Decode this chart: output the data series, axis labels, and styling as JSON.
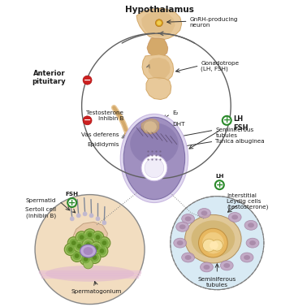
{
  "bg_color": "#ffffff",
  "labels": {
    "hypothalamus": "Hypothalamus",
    "gnrh": "GnRH-producing\nneuron",
    "anterior_pituitary": "Anterior\npituitary",
    "gonadotrope": "Gonadotrope\n(LH, FSH)",
    "testosterone_inhibin": "Testosterone\nInhibin B",
    "e2": "E₂",
    "dht": "DHT",
    "lh_fsh": "LH\nFSH",
    "vas_deferens": "Vas deferens",
    "epididymis": "Epididymis",
    "seminiferous_tubules": "Seminiferous\ntubules",
    "tunica": "Tunica albuginea",
    "lh": "LH",
    "interstitial": "Interstitial\nLeydig cells\n(testosterone)",
    "fsh": "FSH",
    "sertoli": "Sertoli cell\n(Inhibin B)",
    "spermatid": "Spermatid",
    "spermatogonium": "Spermatogonium",
    "sem_tubules_bottom": "Seminiferous\ntubules"
  },
  "colors": {
    "skin_light": "#e8c99a",
    "skin_medium": "#d4a96a",
    "skin_dark": "#c49060",
    "skin_darker": "#b87840",
    "purple_dark": "#8070a8",
    "purple_mid": "#a090c0",
    "purple_light": "#c8b8e0",
    "purple_very_light": "#e0d8f0",
    "blue_light": "#c0d8ec",
    "blue_very_light": "#d8eaf4",
    "green_cell": "#9ec060",
    "green_cell_dark": "#6e9030",
    "green_plus": "#2a8a2a",
    "red_minus": "#cc2020",
    "text_dark": "#1a1a1a",
    "peach": "#f2ddc0",
    "peach_dark": "#e8c8a0",
    "mauve": "#c0a0c0",
    "mauve_dark": "#a080a0",
    "tan_brown": "#c8a878",
    "gray_line": "#606060"
  }
}
